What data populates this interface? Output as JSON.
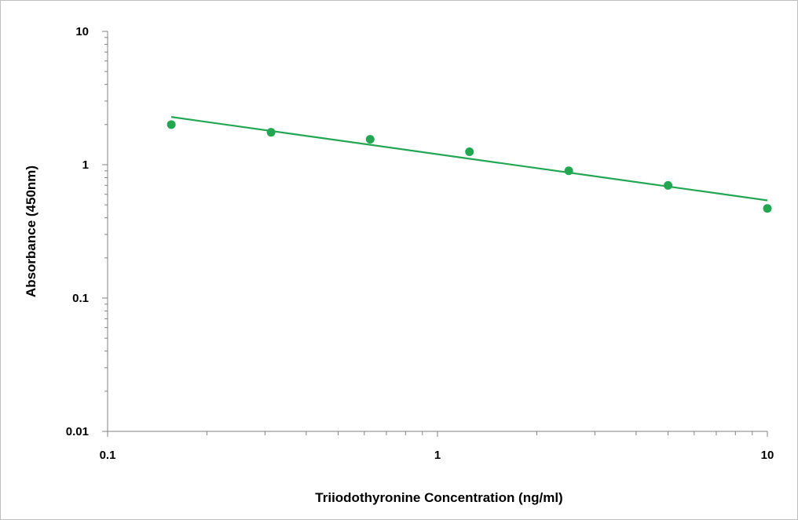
{
  "chart_data": {
    "type": "scatter",
    "title": "",
    "xlabel": "Triiodothyronine Concentration (ng/ml)",
    "ylabel": "Absorbance (450nm)",
    "x_scale": "log",
    "y_scale": "log",
    "xlim": [
      0.1,
      10
    ],
    "ylim": [
      0.01,
      10
    ],
    "x_ticks": [
      "0.1",
      "1",
      "10"
    ],
    "y_ticks": [
      "0.01",
      "0.1",
      "1",
      "10"
    ],
    "grid": false,
    "legend": "none",
    "marker_color": "#22a652",
    "series": [
      {
        "x": [
          0.156,
          0.313,
          0.625,
          1.25,
          2.5,
          5,
          10
        ],
        "y": [
          2.0,
          1.75,
          1.55,
          1.25,
          0.9,
          0.7,
          0.47
        ]
      }
    ],
    "trendline": {
      "type": "power",
      "color": "#22a652",
      "x": [
        0.156,
        10
      ],
      "y": [
        2.28,
        0.54
      ]
    }
  }
}
